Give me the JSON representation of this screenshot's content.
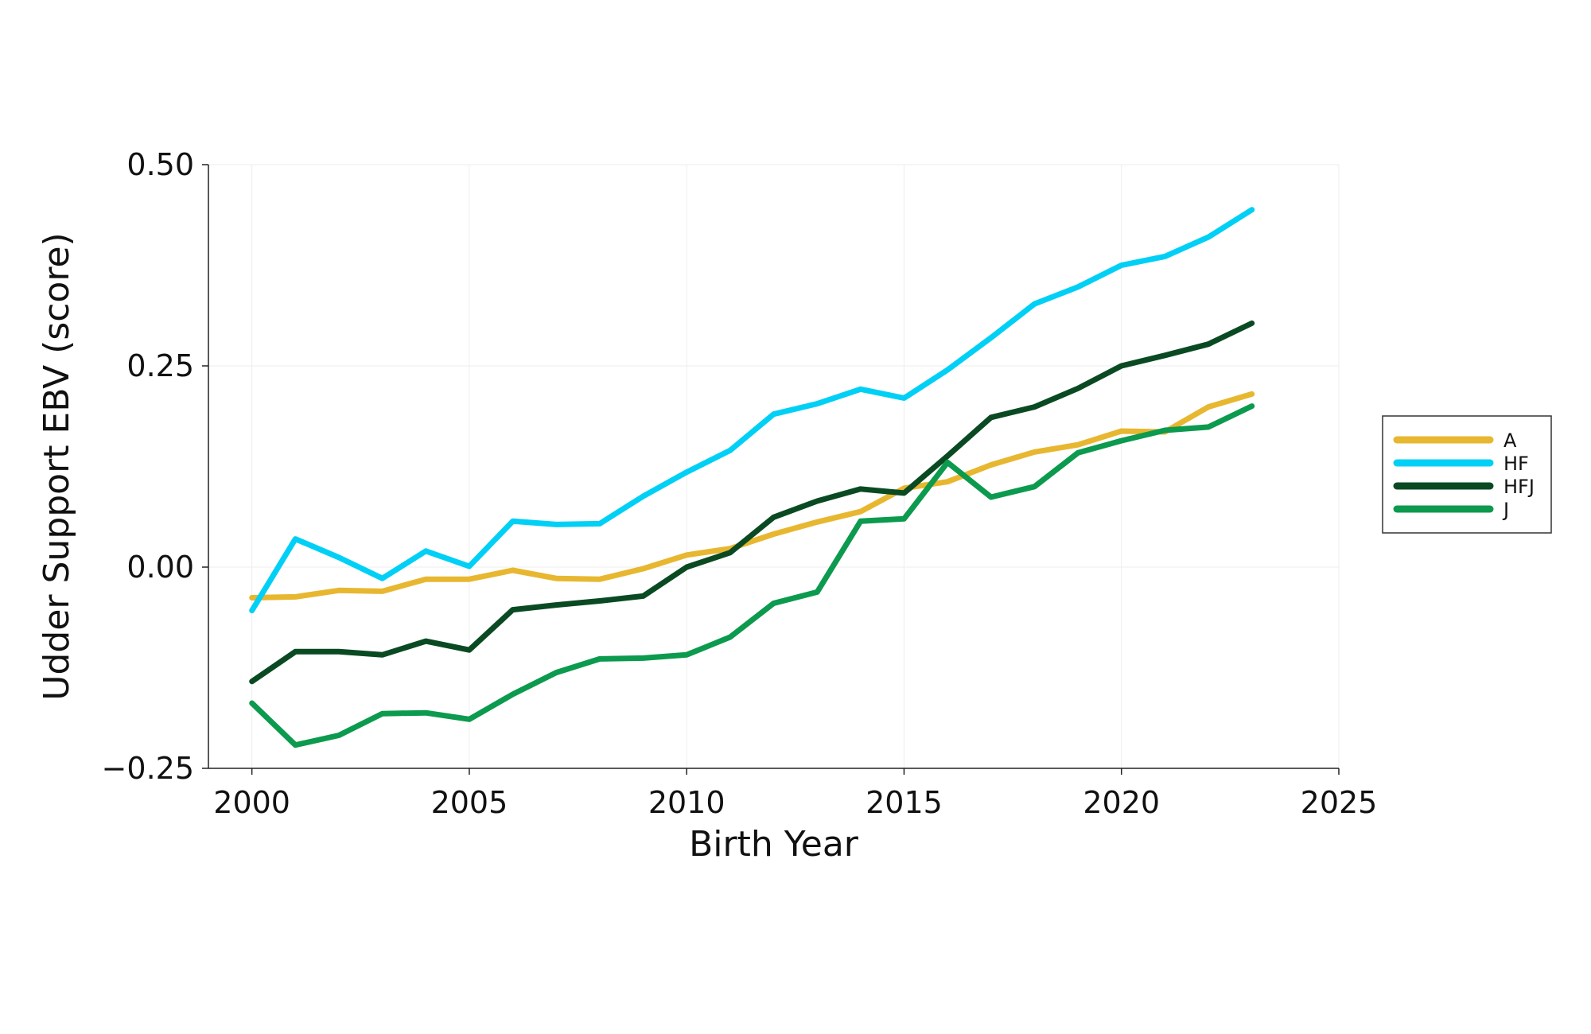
{
  "chart_data": {
    "type": "line",
    "title": "",
    "xlabel": "Birth Year",
    "ylabel": "Udder Support EBV (score)",
    "xlim": [
      1999,
      2025
    ],
    "ylim": [
      -0.25,
      0.5
    ],
    "x_ticks": [
      2000,
      2005,
      2010,
      2015,
      2020,
      2025
    ],
    "y_ticks": [
      -0.25,
      0.0,
      0.25,
      0.5
    ],
    "x_tick_labels": [
      "2000",
      "2005",
      "2010",
      "2015",
      "2020",
      "2025"
    ],
    "y_tick_labels": [
      "−0.25",
      "0.00",
      "0.25",
      "0.50"
    ],
    "grid": true,
    "legend_position": "right",
    "x": [
      2000,
      2001,
      2002,
      2003,
      2004,
      2005,
      2006,
      2007,
      2008,
      2009,
      2010,
      2011,
      2012,
      2013,
      2014,
      2015,
      2016,
      2017,
      2018,
      2019,
      2020,
      2021,
      2022,
      2023
    ],
    "series": [
      {
        "name": "A",
        "color": "#E8B730",
        "values": [
          -0.038,
          -0.037,
          -0.029,
          -0.03,
          -0.015,
          -0.015,
          -0.004,
          -0.014,
          -0.015,
          -0.002,
          0.015,
          0.023,
          0.041,
          0.056,
          0.069,
          0.098,
          0.106,
          0.127,
          0.143,
          0.152,
          0.169,
          0.168,
          0.199,
          0.215
        ]
      },
      {
        "name": "HF",
        "color": "#00D0F5",
        "values": [
          -0.054,
          0.035,
          0.012,
          -0.014,
          0.02,
          0.001,
          0.057,
          0.053,
          0.054,
          0.088,
          0.118,
          0.145,
          0.19,
          0.203,
          0.221,
          0.21,
          0.245,
          0.285,
          0.327,
          0.348,
          0.375,
          0.386,
          0.41,
          0.444
        ]
      },
      {
        "name": "HFJ",
        "color": "#0A4A23",
        "values": [
          -0.142,
          -0.105,
          -0.105,
          -0.109,
          -0.092,
          -0.103,
          -0.053,
          -0.047,
          -0.042,
          -0.036,
          0.0,
          0.018,
          0.062,
          0.082,
          0.097,
          0.092,
          0.138,
          0.186,
          0.199,
          0.222,
          0.25,
          0.263,
          0.277,
          0.303
        ]
      },
      {
        "name": "J",
        "color": "#0C9A4E",
        "values": [
          -0.169,
          -0.221,
          -0.209,
          -0.182,
          -0.181,
          -0.189,
          -0.158,
          -0.131,
          -0.114,
          -0.113,
          -0.109,
          -0.087,
          -0.045,
          -0.031,
          0.057,
          0.06,
          0.13,
          0.087,
          0.1,
          0.142,
          0.157,
          0.17,
          0.174,
          0.2
        ]
      }
    ]
  }
}
